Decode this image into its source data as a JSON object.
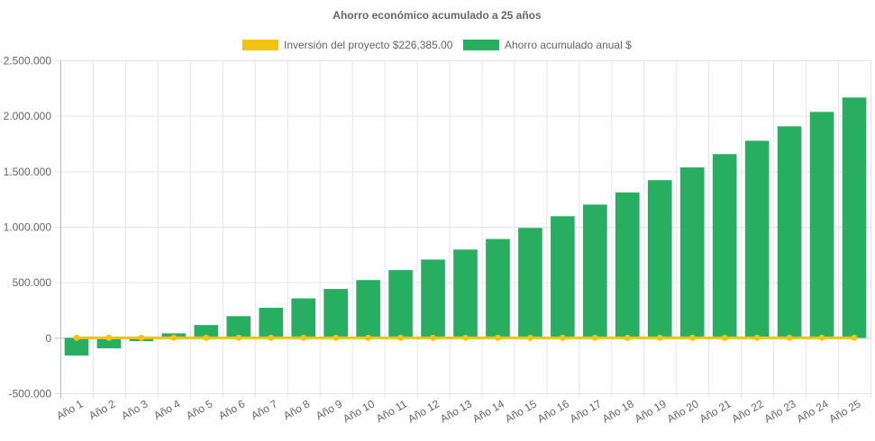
{
  "chart_data": {
    "type": "bar",
    "title": "Ahorro económico acumulado a 25 años",
    "xlabel": "",
    "ylabel": "",
    "ylim": [
      -500000,
      2500000
    ],
    "yticks": [
      -500000,
      0,
      500000,
      1000000,
      1500000,
      2000000,
      2500000
    ],
    "ytick_labels": [
      "-500.000",
      "0",
      "500.000",
      "1.000.000",
      "1.500.000",
      "2.000.000",
      "2.500.000"
    ],
    "grid": true,
    "legend_position": "top",
    "categories": [
      "Año 1",
      "Año 2",
      "Año 3",
      "Año 4",
      "Año 5",
      "Año 6",
      "Año 7",
      "Año 8",
      "Año 9",
      "Año 10",
      "Año 11",
      "Año 12",
      "Año 13",
      "Año 14",
      "Año 15",
      "Año 16",
      "Año 17",
      "Año 18",
      "Año 19",
      "Año 20",
      "Año 21",
      "Año 22",
      "Año 23",
      "Año 24",
      "Año 25"
    ],
    "series": [
      {
        "name": "Inversión del proyecto $226,385.00",
        "type": "line",
        "color": "#f1c40f",
        "values": [
          0,
          0,
          0,
          0,
          0,
          0,
          0,
          0,
          0,
          0,
          0,
          0,
          0,
          0,
          0,
          0,
          0,
          0,
          0,
          0,
          0,
          0,
          0,
          0,
          0
        ]
      },
      {
        "name": "Ahorro acumulado anual $",
        "type": "bar",
        "color": "#27ae60",
        "values": [
          -160000,
          -95000,
          -30000,
          40000,
          115000,
          195000,
          270000,
          355000,
          440000,
          520000,
          610000,
          705000,
          795000,
          890000,
          990000,
          1095000,
          1200000,
          1310000,
          1420000,
          1535000,
          1655000,
          1775000,
          1905000,
          2035000,
          2165000
        ]
      }
    ]
  }
}
